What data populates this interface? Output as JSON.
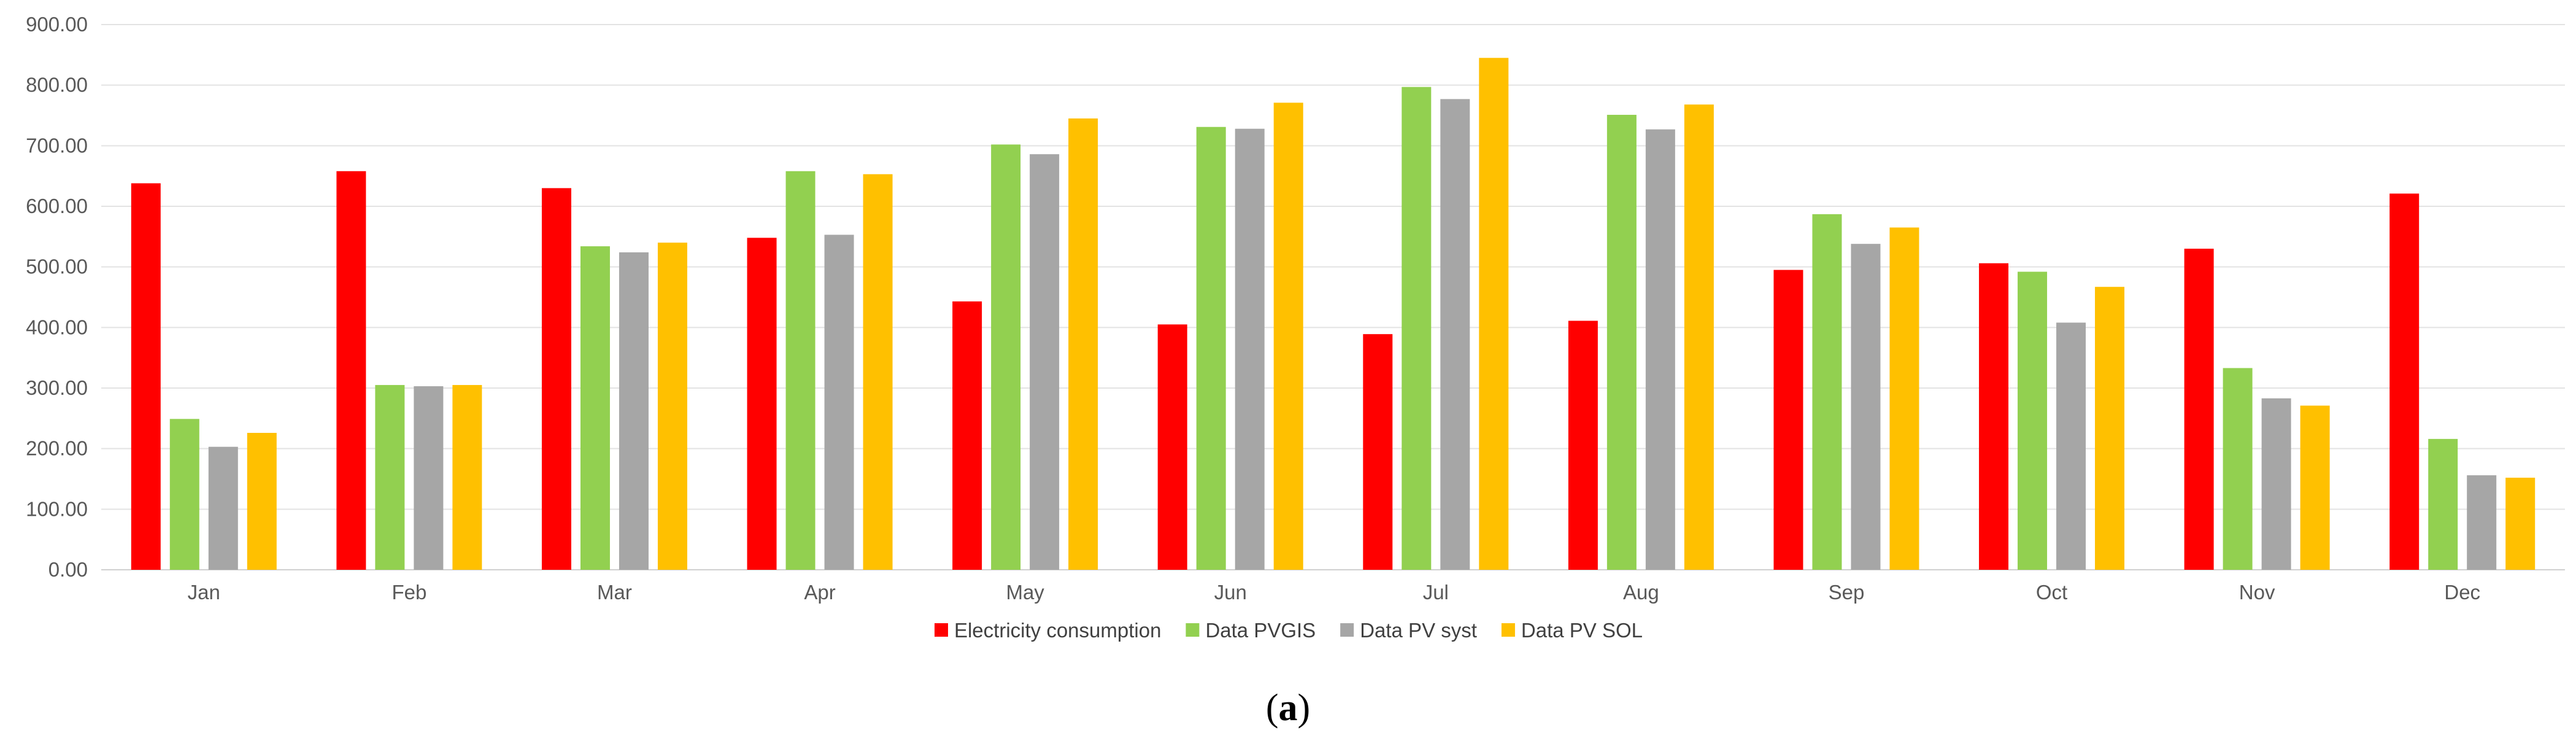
{
  "chart_data": {
    "type": "bar",
    "title": "",
    "xlabel": "",
    "ylabel": "",
    "ylim": [
      0,
      900
    ],
    "yticks": [
      "0.00",
      "100.00",
      "200.00",
      "300.00",
      "400.00",
      "500.00",
      "600.00",
      "700.00",
      "800.00",
      "900.00"
    ],
    "categories": [
      "Jan",
      "Feb",
      "Mar",
      "Apr",
      "May",
      "Jun",
      "Jul",
      "Aug",
      "Sep",
      "Oct",
      "Nov",
      "Dec"
    ],
    "series": [
      {
        "name": "Electricity consumption",
        "color": "#ff0000",
        "values": [
          638,
          658,
          630,
          548,
          443,
          405,
          389,
          411,
          495,
          506,
          530,
          621
        ]
      },
      {
        "name": "Data PVGIS",
        "color": "#92d050",
        "values": [
          249,
          305,
          534,
          658,
          702,
          731,
          797,
          751,
          587,
          492,
          333,
          216
        ]
      },
      {
        "name": "Data PV syst",
        "color": "#a6a6a6",
        "values": [
          203,
          303,
          524,
          553,
          686,
          728,
          777,
          727,
          538,
          408,
          283,
          156
        ]
      },
      {
        "name": "Data PV SOL",
        "color": "#ffc000",
        "values": [
          226,
          305,
          540,
          653,
          745,
          771,
          845,
          768,
          565,
          467,
          271,
          152
        ]
      }
    ],
    "grid": true,
    "legend_position": "bottom-center"
  },
  "caption": {
    "open": "(",
    "label": "a",
    "close": ")"
  }
}
